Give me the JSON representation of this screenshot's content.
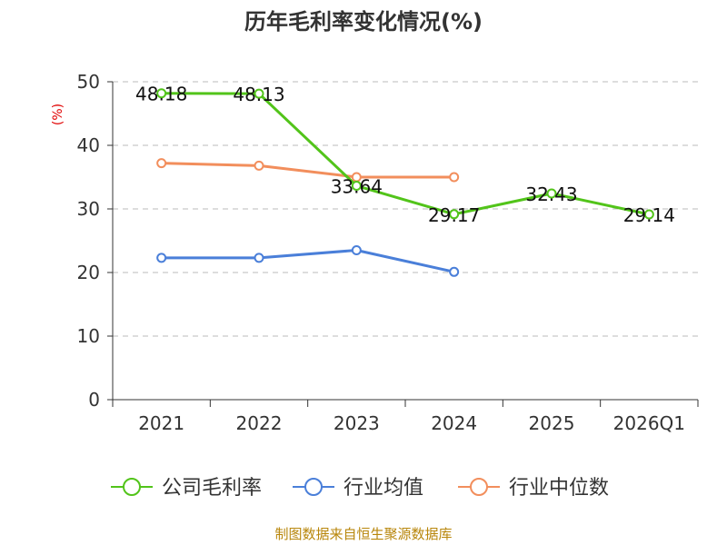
{
  "title": "历年毛利率变化情况(%)",
  "source_note": "制图数据来自恒生聚源数据库",
  "chart_data": {
    "type": "line",
    "title": "历年毛利率变化情况(%)",
    "unit": "(%)",
    "categories": [
      "2021",
      "2022",
      "2023",
      "2024",
      "2025",
      "2026Q1"
    ],
    "ylim": [
      0,
      50
    ],
    "yticks": [
      0,
      10,
      20,
      30,
      40,
      50
    ],
    "grid": true,
    "legend_position": "bottom",
    "series": [
      {
        "name": "公司毛利率",
        "color": "#52c41a",
        "values": [
          48.18,
          48.13,
          33.64,
          29.17,
          32.43,
          29.14
        ],
        "labels": [
          "48.18",
          "48.13",
          "33.64",
          "29.17",
          "32.43",
          "29.14"
        ]
      },
      {
        "name": "行业均值",
        "color": "#4a7fd9",
        "values": [
          22.3,
          22.3,
          23.5,
          20.1,
          null,
          null
        ],
        "labels": []
      },
      {
        "name": "行业中位数",
        "color": "#f28e5c",
        "values": [
          37.2,
          36.8,
          35.0,
          35.0,
          null,
          null
        ],
        "labels": []
      }
    ]
  }
}
